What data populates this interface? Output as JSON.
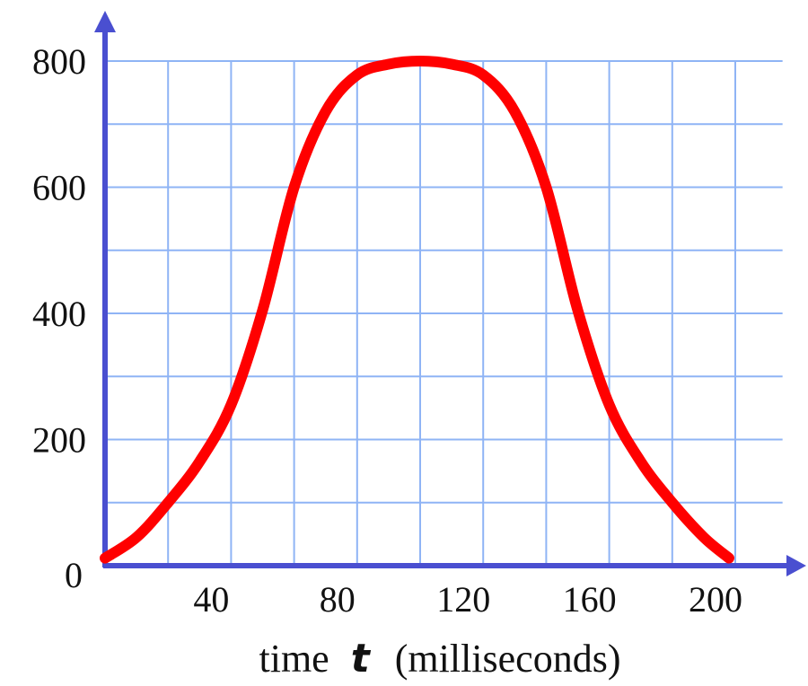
{
  "chart_data": {
    "type": "line",
    "x_ticks": [
      40,
      80,
      120,
      160,
      200
    ],
    "y_ticks": [
      0,
      200,
      400,
      600,
      800
    ],
    "xlim": [
      0,
      215
    ],
    "ylim": [
      0,
      800
    ],
    "grid": true,
    "xlabel": {
      "prefix": "time",
      "variable": "t",
      "suffix": "(milliseconds)"
    },
    "series": [
      {
        "x": [
          0,
          10,
          20,
          30,
          40,
          50,
          60,
          70,
          80,
          90,
          100,
          110,
          120,
          130,
          140,
          150,
          160,
          170,
          180,
          190,
          198
        ],
        "y": [
          12,
          45,
          100,
          165,
          255,
          405,
          600,
          720,
          778,
          795,
          800,
          795,
          778,
          720,
          600,
          405,
          255,
          165,
          100,
          45,
          12
        ]
      }
    ]
  },
  "colors": {
    "axis": "#4a4fd0",
    "grid": "#8fb4f5",
    "line": "#ff0000"
  }
}
